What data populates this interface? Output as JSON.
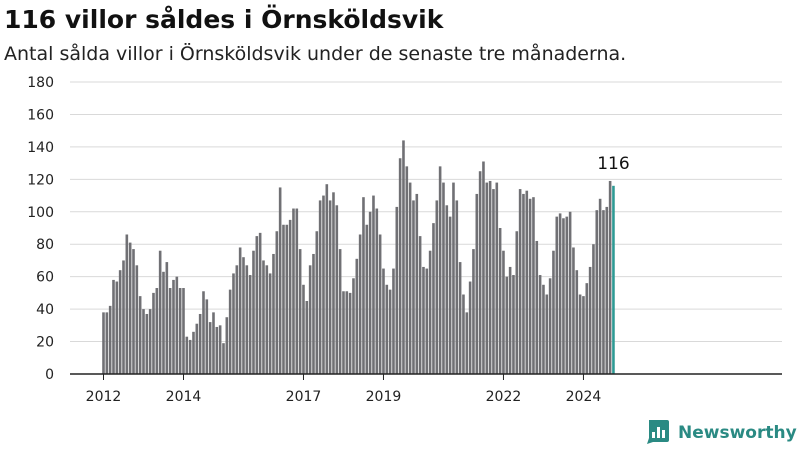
{
  "header": {
    "title": "116 villor såldes i Örnsköldsvik",
    "subtitle": "Antal sålda villor i Örnsköldsvik under de senaste tre månaderna."
  },
  "brand": {
    "label": "Newsworthy",
    "icon": "chart-logo-icon"
  },
  "colors": {
    "bar": "#707074",
    "highlight": "#2e9a94",
    "axis": "#222222",
    "grid": "#d9d9d9",
    "brand": "#2a8a83"
  },
  "chart_data": {
    "type": "bar",
    "title": "116 villor såldes i Örnsköldsvik",
    "subtitle": "Antal sålda villor i Örnsköldsvik under de senaste tre månaderna.",
    "xlabel": "",
    "ylabel": "",
    "ylim": [
      0,
      180
    ],
    "yticks": [
      0,
      20,
      40,
      60,
      80,
      100,
      120,
      140,
      160,
      180
    ],
    "grid": "horizontal",
    "first_period": "2012-01",
    "x_tick_labels": [
      "2012",
      "2014",
      "2017",
      "2019",
      "2022",
      "2024"
    ],
    "x_tick_periods": [
      "2012-01",
      "2014-01",
      "2017-01",
      "2019-01",
      "2022-01",
      "2024-01"
    ],
    "highlight_label": "116",
    "series": [
      {
        "values": [
          38,
          38,
          42,
          58,
          57,
          64,
          70,
          86,
          81,
          77,
          67,
          48,
          40,
          37,
          40,
          50,
          53,
          76,
          63,
          69,
          53,
          58,
          60,
          53,
          53,
          23,
          21,
          26,
          31,
          37,
          51,
          46,
          32,
          38,
          29,
          30,
          19,
          35,
          52,
          62,
          67,
          78,
          72,
          67,
          61,
          76,
          85,
          87,
          70,
          67,
          62,
          74,
          88,
          115,
          92,
          92,
          95,
          102,
          102,
          77,
          55,
          45,
          67,
          74,
          88,
          107,
          110,
          117,
          107,
          112,
          104,
          77,
          51,
          51,
          50,
          59,
          71,
          86,
          109,
          92,
          100,
          110,
          102,
          86,
          65,
          55,
          52,
          65,
          103,
          133,
          144,
          128,
          118,
          107,
          111,
          85,
          66,
          65,
          76,
          93,
          107,
          128,
          118,
          104,
          97,
          118,
          107,
          69,
          49,
          38,
          57,
          77,
          111,
          125,
          131,
          118,
          119,
          114,
          118,
          90,
          76,
          60,
          66,
          61,
          88,
          114,
          111,
          113,
          108,
          109,
          82,
          61,
          55,
          49,
          59,
          76,
          97,
          99,
          96,
          97,
          100,
          78,
          64,
          49,
          48,
          56,
          66,
          80,
          101,
          108,
          101,
          103,
          119,
          116
        ]
      }
    ]
  }
}
